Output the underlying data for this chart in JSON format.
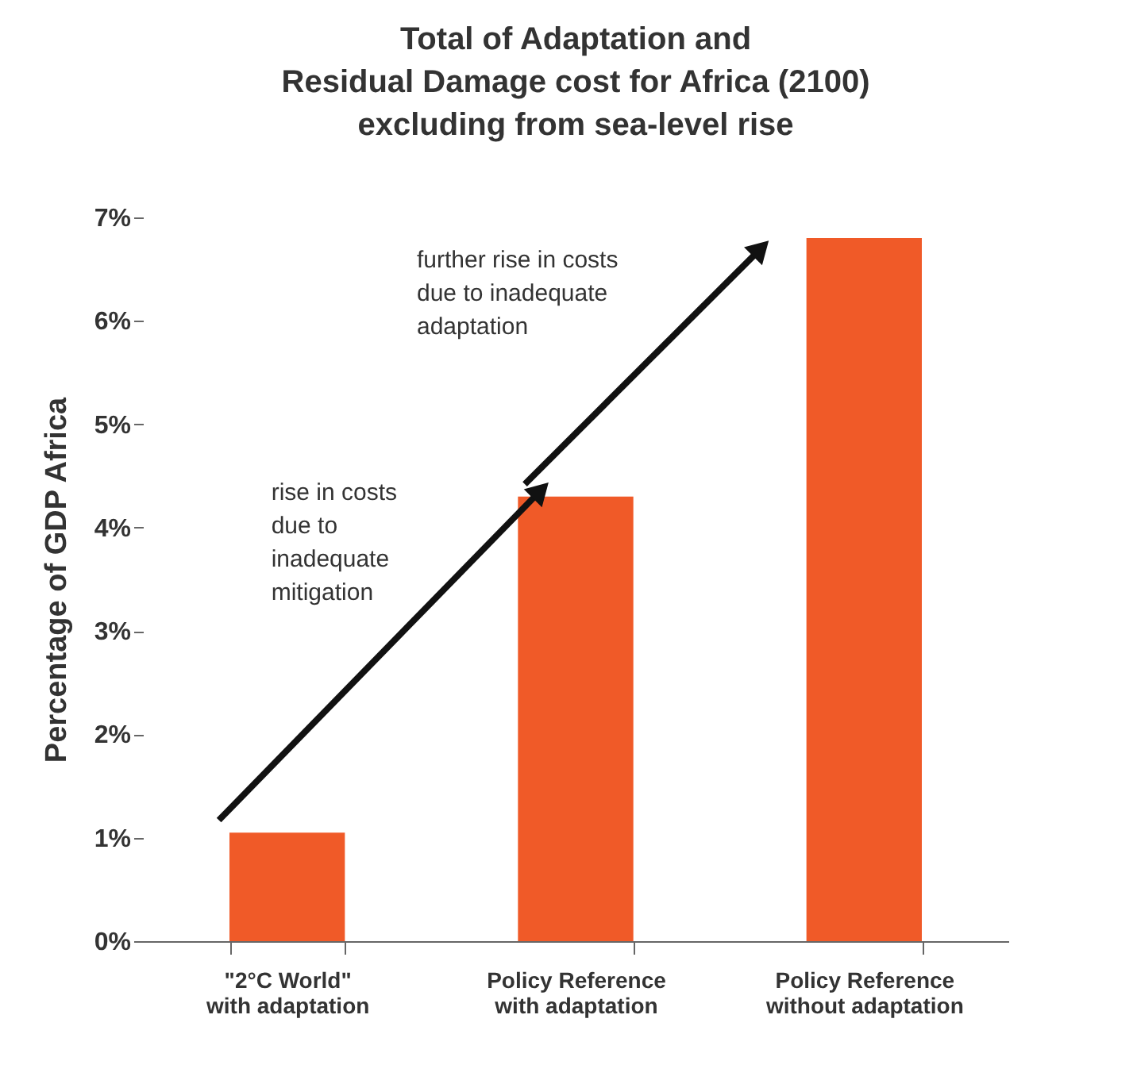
{
  "chart_data": {
    "type": "bar",
    "title": [
      "Total of Adaptation and",
      "Residual Damage cost for Africa (2100)",
      "excluding from sea-level rise"
    ],
    "ylabel": "Percentage of GDP Africa",
    "categories": [
      "\"2°C World\"\nwith adaptation",
      "Policy Reference\nwith adaptation",
      "Policy Reference\nwithout adaptation"
    ],
    "values": [
      1.05,
      4.3,
      6.8
    ],
    "color": "#f05a28",
    "ylim": [
      0,
      7
    ],
    "yticks": [
      {
        "value": 0,
        "label": "0%"
      },
      {
        "value": 1,
        "label": "1%"
      },
      {
        "value": 2,
        "label": "2%"
      },
      {
        "value": 3,
        "label": "3%"
      },
      {
        "value": 4,
        "label": "4%"
      },
      {
        "value": 5,
        "label": "5%"
      },
      {
        "value": 6,
        "label": "6%"
      },
      {
        "value": 7,
        "label": "7%"
      }
    ],
    "annotations": [
      "rise in costs\ndue to\ninadequate\nmitigation",
      "further rise in costs\ndue to inadequate\nadaptation"
    ],
    "grid": false
  }
}
